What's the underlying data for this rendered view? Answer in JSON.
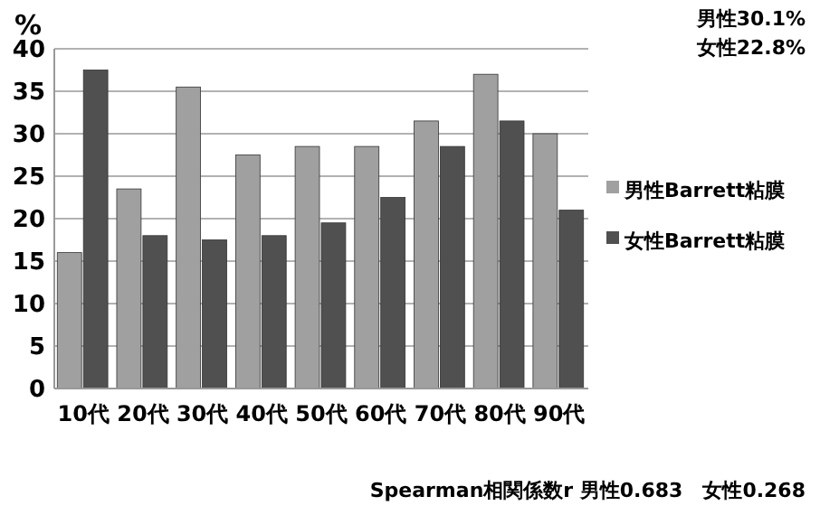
{
  "chart_data": {
    "type": "bar",
    "ylabel": "%",
    "categories": [
      "10代",
      "20代",
      "30代",
      "40代",
      "50代",
      "60代",
      "70代",
      "80代",
      "90代"
    ],
    "series": [
      {
        "name": "男性Barrett粘膜",
        "color": "#a0a0a0",
        "values": [
          16,
          23.5,
          35.5,
          27.5,
          28.5,
          28.5,
          31.5,
          37,
          30
        ]
      },
      {
        "name": "女性Barrett粘膜",
        "color": "#505050",
        "values": [
          37.5,
          18,
          17.5,
          18,
          19.5,
          22.5,
          28.5,
          31.5,
          21
        ]
      }
    ],
    "ylim": [
      0,
      40
    ],
    "yticks": [
      0,
      5,
      10,
      15,
      20,
      25,
      30,
      35,
      40
    ],
    "grid": "y",
    "legend": "right",
    "annotations": [
      "男性30.1%",
      "女性22.8%",
      "Spearman相関係数r 男性0.683　女性0.268"
    ]
  }
}
